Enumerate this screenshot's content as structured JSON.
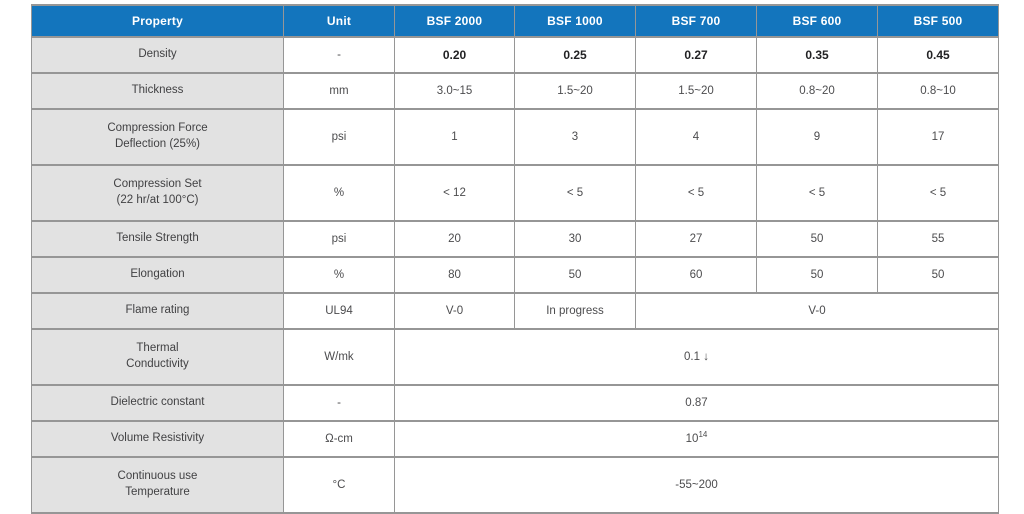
{
  "table": {
    "columns": [
      "Property",
      "Unit",
      "BSF 2000",
      "BSF 1000",
      "BSF 700",
      "BSF 600",
      "BSF 500"
    ],
    "rows": [
      {
        "property": "Density",
        "unit": "-",
        "emphasis": true,
        "cells": [
          {
            "text": "0.20"
          },
          {
            "text": "0.25"
          },
          {
            "text": "0.27"
          },
          {
            "text": "0.35"
          },
          {
            "text": "0.45"
          }
        ]
      },
      {
        "property": "Thickness",
        "unit": "mm",
        "cells": [
          {
            "text": "3.0~15"
          },
          {
            "text": "1.5~20"
          },
          {
            "text": "1.5~20"
          },
          {
            "text": "0.8~20"
          },
          {
            "text": "0.8~10"
          }
        ]
      },
      {
        "property": "Compression Force\nDeflection (25%)",
        "unit": "psi",
        "cells": [
          {
            "text": "1"
          },
          {
            "text": "3"
          },
          {
            "text": "4"
          },
          {
            "text": "9"
          },
          {
            "text": "17"
          }
        ]
      },
      {
        "property": "Compression Set\n(22 hr/at 100°C)",
        "unit": "%",
        "cells": [
          {
            "text": "< 12"
          },
          {
            "text": "< 5"
          },
          {
            "text": "< 5"
          },
          {
            "text": "< 5"
          },
          {
            "text": "< 5"
          }
        ]
      },
      {
        "property": "Tensile Strength",
        "unit": "psi",
        "cells": [
          {
            "text": "20"
          },
          {
            "text": "30"
          },
          {
            "text": "27"
          },
          {
            "text": "50"
          },
          {
            "text": "55"
          }
        ]
      },
      {
        "property": "Elongation",
        "unit": "%",
        "cells": [
          {
            "text": "80"
          },
          {
            "text": "50"
          },
          {
            "text": "60"
          },
          {
            "text": "50"
          },
          {
            "text": "50"
          }
        ]
      },
      {
        "property": "Flame rating",
        "unit": "UL94",
        "cells": [
          {
            "text": "V-0"
          },
          {
            "text": "In progress"
          },
          {
            "text": "V-0",
            "span": 3
          }
        ]
      },
      {
        "property": "Thermal\nConductivity",
        "unit": "W/mk",
        "cells": [
          {
            "text": "0.1 ↓",
            "span": 5
          }
        ]
      },
      {
        "property": "Dielectric constant",
        "unit": "-",
        "cells": [
          {
            "text": "0.87",
            "span": 5
          }
        ]
      },
      {
        "property": "Volume Resistivity",
        "unit": "Ω-cm",
        "cells": [
          {
            "text": "10",
            "sup": "14",
            "span": 5
          }
        ]
      },
      {
        "property": "Continuous use\nTemperature",
        "unit": "°C",
        "cells": [
          {
            "text": "-55~200",
            "span": 5
          }
        ]
      }
    ],
    "colors": {
      "header_bg": "#1375BD",
      "header_text": "#FFFFFF",
      "property_bg": "#E2E2E2",
      "border": "#969696"
    }
  }
}
